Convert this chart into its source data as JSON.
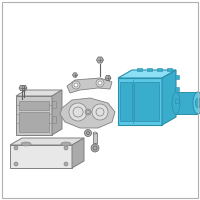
{
  "background_color": "#ffffff",
  "border_color": "#b0b0b0",
  "hl": "#5bc8e8",
  "hl_dark": "#3aaccc",
  "hl_light": "#8ddff5",
  "hl_edge": "#2a8faa",
  "gray": "#c8c8c8",
  "gray_light": "#e0e0e0",
  "gray_dark": "#aaaaaa",
  "gray_edge": "#808080",
  "line_color": "#707070",
  "bolt_color": "#b0b0b0",
  "bolt_edge": "#606060"
}
